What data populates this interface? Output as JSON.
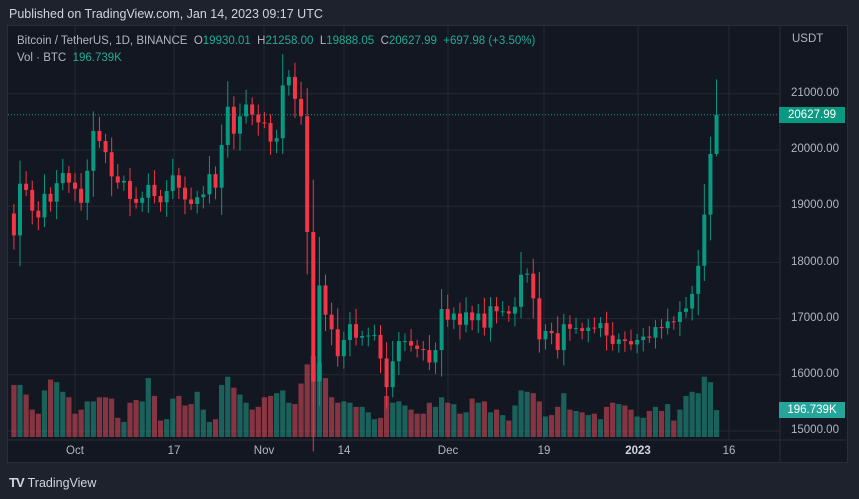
{
  "header": {
    "published": "Published on TradingView.com, Jan 14, 2023 09:17 UTC"
  },
  "legend": {
    "symbol": "Bitcoin / TetherUS, 1D, BINANCE",
    "o_label": "O",
    "o": "19930.01",
    "h_label": "H",
    "h": "21258.00",
    "l_label": "L",
    "l": "19888.05",
    "c_label": "C",
    "c": "20627.99",
    "change": "+697.98 (+3.50%)",
    "vol_label": "Vol · BTC",
    "vol": "196.739K"
  },
  "price_axis": {
    "unit": "USDT",
    "labels": [
      "21000.00",
      "20000.00",
      "19000.00",
      "18000.00",
      "17000.00",
      "16000.00",
      "15000.00"
    ],
    "current_price": "20627.99",
    "current_volume": "196.739K"
  },
  "time_axis": {
    "labels": [
      "Oct",
      "17",
      "Nov",
      "14",
      "Dec",
      "19",
      "2023",
      "16"
    ]
  },
  "footer": {
    "brand": "TradingView"
  },
  "colors": {
    "up": "#089981",
    "down": "#f23645",
    "vol_up": "#22ab94",
    "vol_down": "#f7525f",
    "background": "#131722"
  },
  "chart_data": {
    "type": "candlestick",
    "symbol": "BTCUSDT",
    "interval": "1D",
    "first_date": "2022-09-21",
    "first_open": 18870,
    "closes": [
      18480,
      19400,
      19290,
      18920,
      18800,
      19220,
      19080,
      19410,
      19590,
      19420,
      19310,
      19060,
      19630,
      20340,
      20160,
      19960,
      19530,
      19420,
      19450,
      19130,
      19060,
      19150,
      19380,
      19180,
      19070,
      19270,
      19550,
      19330,
      19120,
      19040,
      19160,
      19210,
      19570,
      19330,
      20090,
      20770,
      20290,
      20600,
      20810,
      20630,
      20490,
      20480,
      20150,
      20210,
      21150,
      21300,
      20910,
      20600,
      18540,
      15880,
      17590,
      17070,
      16810,
      16330,
      16620,
      16900,
      16660,
      16690,
      16700,
      16710,
      16290,
      15780,
      16240,
      16600,
      16600,
      16520,
      16460,
      16440,
      16220,
      16440,
      17170,
      16980,
      17090,
      16890,
      17110,
      16970,
      17090,
      16840,
      17220,
      17130,
      17130,
      17090,
      17210,
      17780,
      17800,
      17360,
      16630,
      16780,
      16740,
      16440,
      16900,
      16820,
      16830,
      16780,
      16840,
      16830,
      16920,
      16700,
      16550,
      16630,
      16600,
      16540,
      16620,
      16680,
      16660,
      16850,
      16830,
      16950,
      16940,
      17120,
      17180,
      17440,
      17940,
      18850,
      19930,
      20627.99
    ],
    "volumes_k": [
      380,
      380,
      310,
      200,
      170,
      340,
      420,
      400,
      330,
      290,
      170,
      200,
      260,
      260,
      290,
      290,
      280,
      140,
      110,
      250,
      270,
      260,
      430,
      300,
      120,
      130,
      280,
      300,
      230,
      240,
      330,
      200,
      110,
      130,
      380,
      440,
      360,
      310,
      250,
      200,
      220,
      290,
      300,
      320,
      340,
      250,
      240,
      390,
      530,
      590,
      540,
      430,
      290,
      250,
      260,
      250,
      220,
      220,
      180,
      130,
      140,
      300,
      250,
      260,
      230,
      200,
      170,
      170,
      250,
      220,
      290,
      250,
      240,
      170,
      180,
      280,
      250,
      260,
      180,
      200,
      160,
      120,
      230,
      340,
      330,
      320,
      260,
      150,
      160,
      220,
      320,
      200,
      190,
      180,
      160,
      170,
      130,
      220,
      250,
      240,
      230,
      200,
      150,
      140,
      190,
      220,
      190,
      240,
      120,
      200,
      300,
      330,
      320,
      440,
      400,
      196.739
    ],
    "last_candle": {
      "open": 19930.01,
      "high": 21258.0,
      "low": 19888.05,
      "close": 20627.99
    },
    "y_range": [
      14900,
      21700
    ],
    "grid": true
  }
}
